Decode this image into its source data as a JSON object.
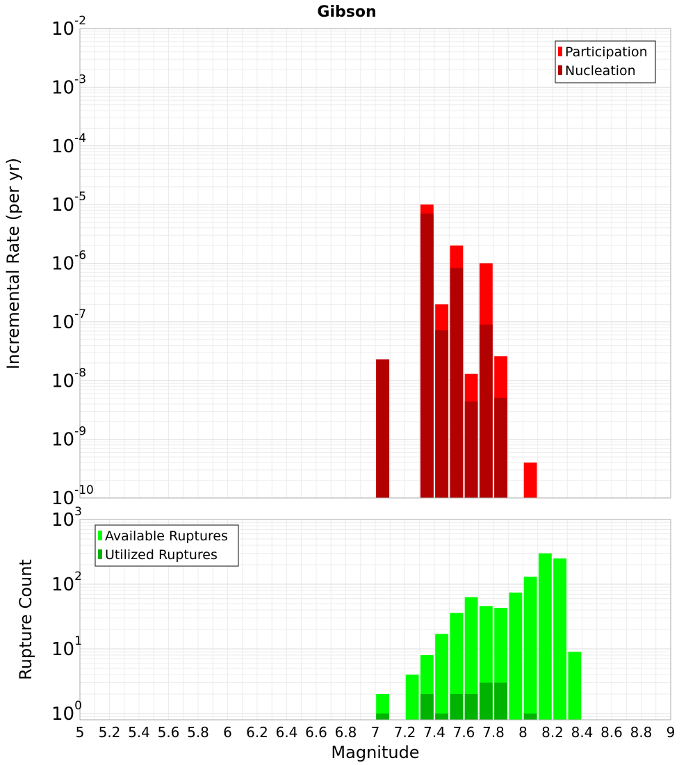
{
  "chart_data": [
    {
      "type": "bar",
      "title": "Gibson",
      "ylabel": "Incremental Rate (per yr)",
      "yscale": "log",
      "ylim": [
        1e-10,
        0.01
      ],
      "xlim": [
        5,
        9
      ],
      "bin_width": 0.1,
      "grid": true,
      "legend_position": "top-right",
      "y_tick_exponents": [
        "-2",
        "-3",
        "-4",
        "-5",
        "-6",
        "-7",
        "-8",
        "-9",
        "-10"
      ],
      "series": [
        {
          "name": "Participation",
          "color": "#ff0000",
          "x": [
            7.05,
            7.35,
            7.45,
            7.55,
            7.65,
            7.75,
            7.85,
            8.05
          ],
          "values": [
            2.3e-08,
            1e-05,
            2e-07,
            2e-06,
            1.3e-08,
            1e-06,
            2.6e-08,
            4e-10
          ]
        },
        {
          "name": "Nucleation",
          "color": "#b30000",
          "x": [
            7.05,
            7.35,
            7.45,
            7.55,
            7.65,
            7.75,
            7.85
          ],
          "values": [
            2.3e-08,
            7e-06,
            7.2e-08,
            8.3e-07,
            4.4e-09,
            9e-08,
            5.1e-09
          ]
        }
      ]
    },
    {
      "type": "bar",
      "title": "",
      "xlabel": "Magnitude",
      "ylabel": "Rupture Count",
      "yscale": "log",
      "ylim": [
        0.8,
        1000
      ],
      "xlim": [
        5,
        9
      ],
      "bin_width": 0.1,
      "grid": true,
      "legend_position": "top-left",
      "x_ticks": [
        "5",
        "5.2",
        "5.4",
        "5.6",
        "5.8",
        "6",
        "6.2",
        "6.4",
        "6.6",
        "6.8",
        "7",
        "7.2",
        "7.4",
        "7.6",
        "7.8",
        "8",
        "8.2",
        "8.4",
        "8.6",
        "8.8",
        "9"
      ],
      "y_tick_exponents": [
        "3",
        "2",
        "1",
        "0"
      ],
      "series": [
        {
          "name": "Available Ruptures",
          "color": "#00ff00",
          "x": [
            7.05,
            7.25,
            7.35,
            7.45,
            7.55,
            7.65,
            7.75,
            7.85,
            7.95,
            8.05,
            8.15,
            8.25,
            8.35
          ],
          "values": [
            2,
            4,
            8,
            17,
            36,
            63,
            46,
            43,
            74,
            130,
            300,
            250,
            9
          ]
        },
        {
          "name": "Utilized Ruptures",
          "color": "#00b300",
          "x": [
            7.05,
            7.35,
            7.45,
            7.55,
            7.65,
            7.75,
            7.85,
            8.05
          ],
          "values": [
            1,
            2,
            1,
            2,
            2,
            3,
            3,
            1
          ]
        }
      ]
    }
  ]
}
